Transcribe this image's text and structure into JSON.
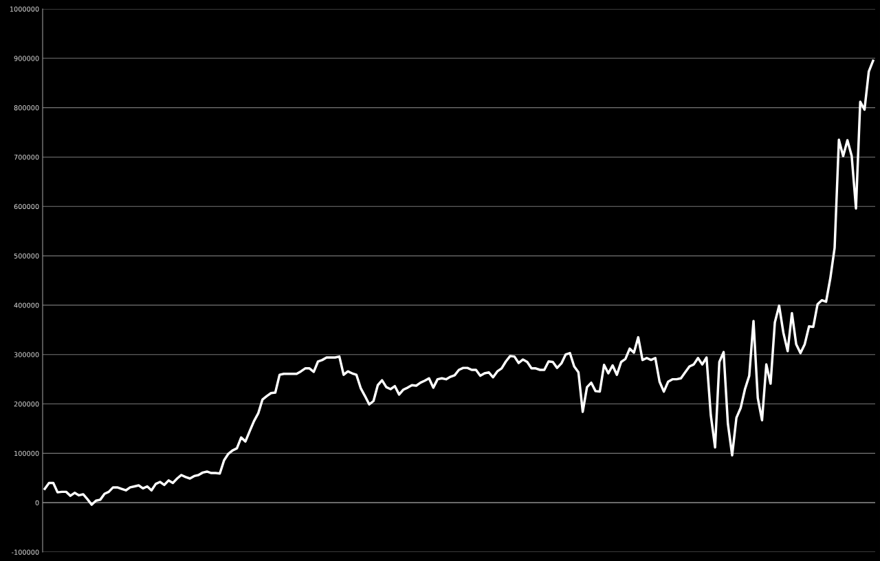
{
  "chart_data": {
    "type": "line",
    "categories": [
      null,
      null,
      null,
      null,
      null,
      null,
      null,
      null,
      null,
      null,
      null,
      null,
      null,
      null,
      null,
      null,
      null,
      null,
      null,
      null,
      null,
      null,
      null,
      null,
      null,
      null,
      null,
      null,
      null,
      null,
      null,
      null,
      null,
      null,
      null,
      null,
      null,
      null,
      null,
      null,
      null,
      null,
      null,
      null,
      null,
      null,
      null,
      null,
      null,
      null,
      null,
      null,
      null,
      null,
      null,
      null,
      null,
      null,
      null,
      null,
      null,
      null,
      null,
      null,
      null,
      null,
      null,
      null,
      null,
      null,
      null,
      null,
      null,
      null,
      null,
      null,
      null,
      null,
      null,
      null,
      null,
      null,
      null,
      null,
      null,
      null,
      null,
      null,
      null,
      null,
      null,
      null,
      null,
      null,
      null,
      null,
      null,
      null,
      null,
      null,
      null,
      null,
      null,
      null,
      null,
      null,
      null,
      null,
      null,
      null,
      null,
      null,
      null,
      null,
      null,
      null,
      null,
      null,
      null,
      null,
      null,
      null,
      null,
      null,
      null,
      null,
      null,
      null,
      null,
      null,
      null,
      null,
      null,
      null,
      null,
      null,
      null,
      null,
      null,
      null,
      null,
      null,
      null,
      null,
      null,
      null,
      null,
      null,
      null,
      null,
      null,
      null,
      null,
      null,
      null,
      null,
      null,
      null,
      null,
      null,
      null,
      null,
      null,
      null,
      null,
      null,
      null,
      null,
      null,
      null,
      null,
      null,
      null,
      null,
      null,
      null,
      null,
      null,
      null,
      null,
      null,
      null,
      null,
      null,
      null,
      null,
      null,
      null,
      null,
      null,
      null,
      null,
      null,
      null,
      null
    ],
    "series": [
      {
        "color": "#ffffff",
        "values": [
          28000,
          40000,
          40000,
          21000,
          22000,
          22000,
          14000,
          20000,
          15000,
          17000,
          7000,
          -4000,
          4000,
          6000,
          18000,
          22000,
          31000,
          31000,
          28000,
          25000,
          31000,
          33000,
          35000,
          29000,
          33000,
          25000,
          38000,
          42000,
          36000,
          45000,
          40000,
          49000,
          56000,
          52000,
          49000,
          54000,
          56000,
          61000,
          63000,
          60000,
          60000,
          59000,
          86000,
          99000,
          106000,
          110000,
          132000,
          124000,
          145000,
          165000,
          181000,
          209000,
          216000,
          222000,
          223000,
          259000,
          261000,
          261000,
          261000,
          261000,
          266000,
          272000,
          272000,
          265000,
          286000,
          289000,
          294000,
          294000,
          294000,
          296000,
          259000,
          266000,
          262000,
          259000,
          232000,
          216000,
          199000,
          206000,
          238000,
          248000,
          234000,
          230000,
          236000,
          219000,
          229000,
          233000,
          238000,
          237000,
          243000,
          247000,
          252000,
          233000,
          250000,
          252000,
          250000,
          255000,
          258000,
          269000,
          273000,
          273000,
          269000,
          269000,
          257000,
          262000,
          264000,
          254000,
          266000,
          272000,
          286000,
          297000,
          296000,
          283000,
          290000,
          285000,
          272000,
          272000,
          269000,
          269000,
          286000,
          285000,
          273000,
          282000,
          300000,
          303000,
          276000,
          264000,
          184000,
          234000,
          243000,
          226000,
          225000,
          279000,
          262000,
          278000,
          259000,
          285000,
          291000,
          312000,
          304000,
          335000,
          289000,
          293000,
          289000,
          293000,
          245000,
          225000,
          245000,
          250000,
          250000,
          252000,
          264000,
          276000,
          280000,
          293000,
          280000,
          294000,
          177000,
          112000,
          285000,
          305000,
          160000,
          96000,
          172000,
          192000,
          230000,
          257000,
          368000,
          212000,
          167000,
          280000,
          241000,
          365000,
          399000,
          344000,
          307000,
          384000,
          321000,
          303000,
          321000,
          357000,
          356000,
          402000,
          410000,
          407000,
          455000,
          516000,
          735000,
          702000,
          734000,
          702000,
          596000,
          812000,
          796000,
          873000,
          895000
        ]
      }
    ],
    "ylim": [
      -100000,
      1000000
    ],
    "yticks": [
      -100000,
      0,
      100000,
      200000,
      300000,
      400000,
      500000,
      600000,
      700000,
      800000,
      900000,
      1000000
    ],
    "grid": "y",
    "legend": false,
    "marker": "none",
    "line_style": "solid"
  }
}
